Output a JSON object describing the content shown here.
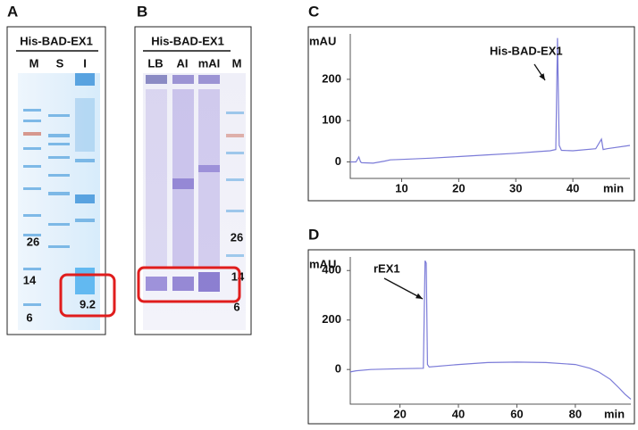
{
  "gels": [
    {
      "panel": "A",
      "title": "His-BAD-EX1",
      "lanes": [
        "M",
        "S",
        "I"
      ],
      "markers": [
        26,
        14,
        6
      ],
      "highlight": 9.2
    },
    {
      "panel": "B",
      "title": "His-BAD-EX1",
      "lanes": [
        "LB",
        "AI",
        "mAI",
        "M"
      ],
      "markers": [
        26,
        14,
        6
      ]
    }
  ],
  "chart_data": [
    {
      "type": "line",
      "panel": "C",
      "ylabel": "mAU",
      "xlabel": "min",
      "annotation": "His-BAD-EX1",
      "color": "#7b7bd8",
      "x": [
        1,
        2,
        2.5,
        2.8,
        3,
        5,
        7,
        8,
        10,
        15,
        20,
        25,
        30,
        34,
        36,
        37,
        37.3,
        37.6,
        38,
        40,
        44,
        45,
        45.3,
        46,
        50
      ],
      "values": [
        0,
        0,
        12,
        0,
        -2,
        -3,
        2,
        5,
        6,
        9,
        13,
        17,
        21,
        25,
        27,
        30,
        300,
        40,
        28,
        27,
        32,
        55,
        30,
        32,
        40
      ],
      "xlim": [
        1,
        50
      ],
      "ylim": [
        -40,
        310
      ],
      "xticks": [
        10,
        20,
        30,
        40
      ],
      "yticks": [
        0,
        100,
        200
      ]
    },
    {
      "type": "line",
      "panel": "D",
      "ylabel": "mAU",
      "xlabel": "min",
      "annotation": "rEX1",
      "color": "#7b7bd8",
      "x": [
        3,
        5,
        10,
        20,
        28,
        28.6,
        29,
        29.4,
        30,
        40,
        50,
        60,
        70,
        80,
        85,
        88,
        92,
        95,
        97,
        99
      ],
      "values": [
        -10,
        -5,
        0,
        3,
        5,
        440,
        430,
        20,
        10,
        20,
        28,
        30,
        28,
        20,
        5,
        -10,
        -40,
        -75,
        -100,
        -120
      ],
      "xlim": [
        3,
        99
      ],
      "ylim": [
        -140,
        455
      ],
      "xticks": [
        20,
        40,
        60,
        80
      ],
      "yticks": [
        0,
        200,
        400
      ]
    }
  ]
}
